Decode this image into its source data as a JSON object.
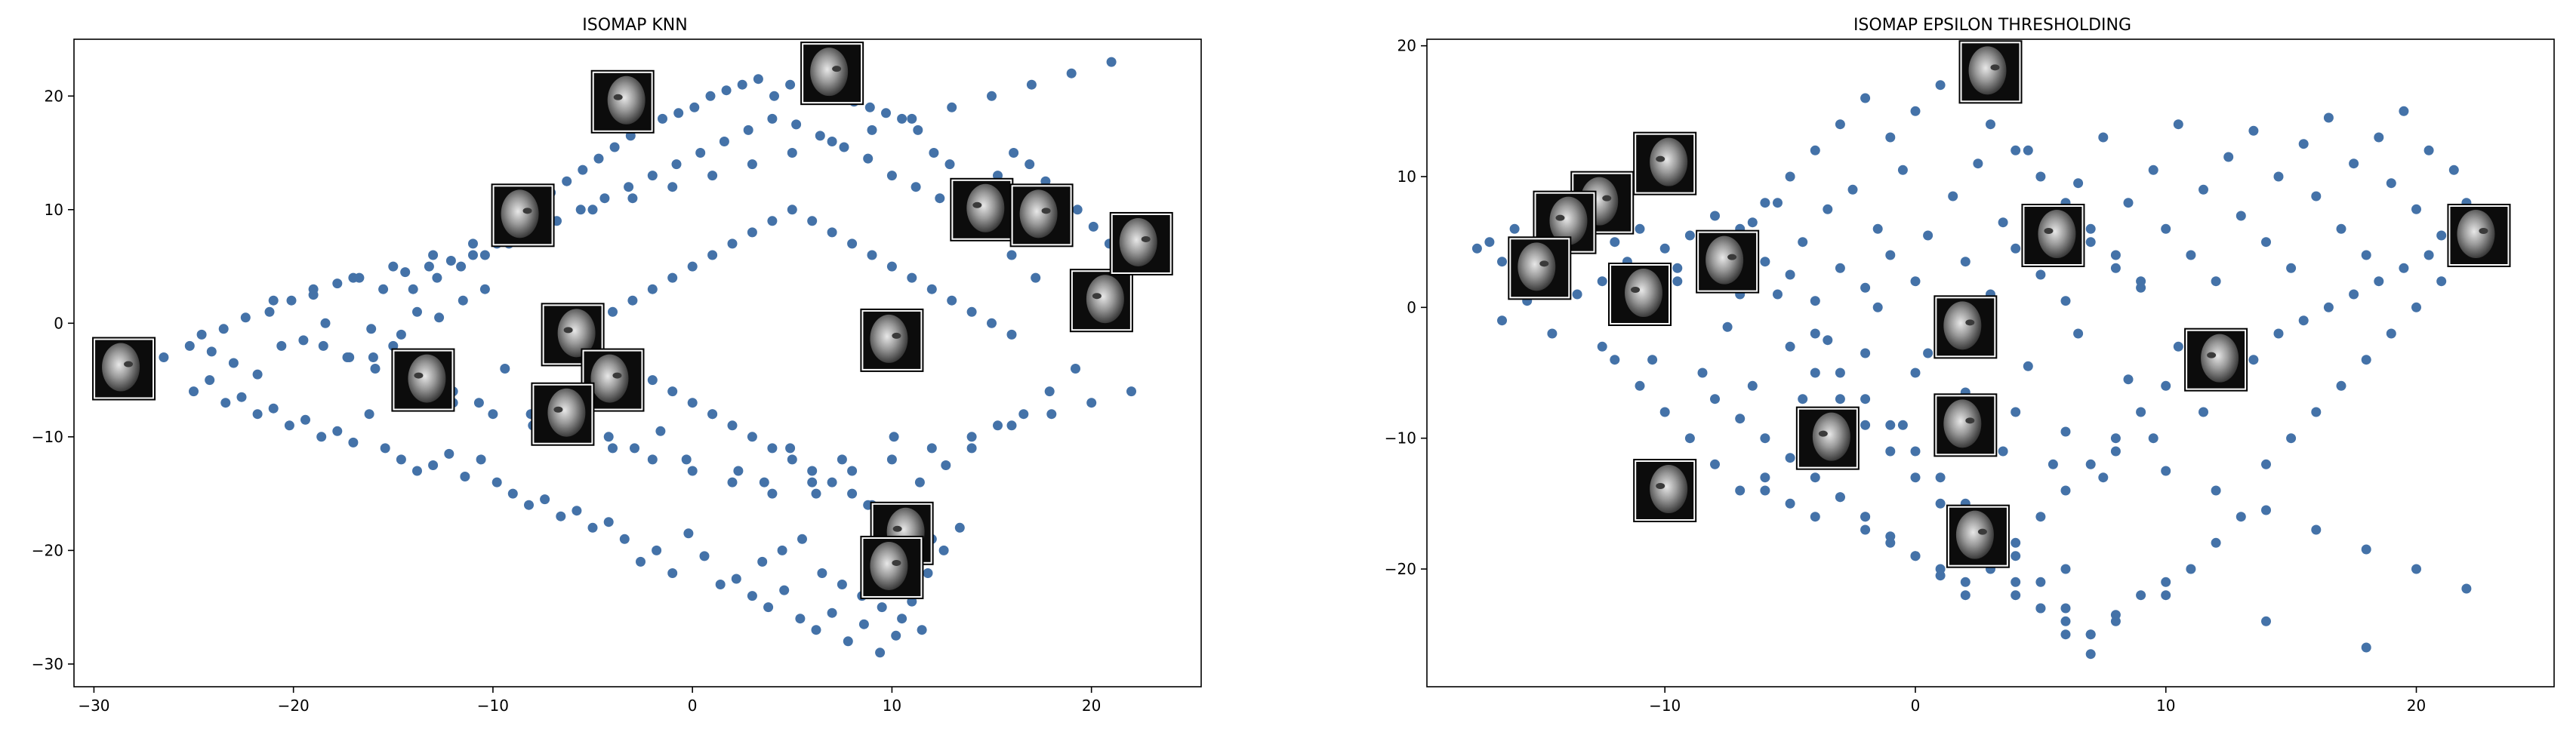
{
  "chart_data": [
    {
      "type": "scatter",
      "title": "ISOMAP KNN",
      "xlabel": "",
      "ylabel": "",
      "xlim": [
        -31,
        25.5
      ],
      "ylim": [
        -32,
        25
      ],
      "xticks": [
        -30,
        -20,
        -10,
        0,
        10,
        20
      ],
      "yticks": [
        -30,
        -20,
        -10,
        0,
        10,
        20
      ],
      "grid": false,
      "marker_color": "#4472a8",
      "points": {
        "x": [
          -27.8,
          -26.5,
          -25.2,
          -24.6,
          -24.1,
          -23.5,
          -23.0,
          -22.4,
          -21.8,
          -21.2,
          -20.6,
          -20.1,
          -19.5,
          -19.0,
          -18.4,
          -17.8,
          -17.3,
          -16.7,
          -16.1,
          -15.5,
          -15.0,
          -14.4,
          -13.8,
          -13.2,
          -12.7,
          -12.1,
          -11.5,
          -11.0,
          -10.4,
          -9.8,
          -25.0,
          -24.2,
          -23.4,
          -22.6,
          -21.8,
          -21.0,
          -20.2,
          -19.4,
          -18.6,
          -17.8,
          -17.0,
          -16.2,
          -15.4,
          -14.6,
          -13.8,
          -13.0,
          -12.2,
          -11.4,
          -10.6,
          -9.8,
          -9.0,
          -8.2,
          -7.4,
          -6.6,
          -5.8,
          -5.0,
          -4.2,
          -3.4,
          -2.6,
          -1.8,
          -1.0,
          -0.2,
          0.6,
          1.4,
          2.2,
          3.0,
          3.8,
          4.6,
          5.4,
          6.2,
          7.0,
          7.8,
          8.6,
          9.4,
          10.2,
          11.0,
          11.8,
          12.6,
          13.4,
          -9.5,
          -8.7,
          -7.9,
          -7.1,
          -6.3,
          -5.5,
          -4.7,
          -3.9,
          -3.1,
          -2.3,
          -1.5,
          -0.7,
          0.1,
          0.9,
          1.7,
          2.5,
          3.3,
          4.1,
          4.9,
          5.7,
          6.5,
          7.3,
          8.1,
          8.9,
          9.7,
          10.5,
          11.3,
          12.1,
          12.9,
          13.7,
          14.5,
          15.3,
          16.1,
          16.9,
          17.7,
          18.5,
          19.3,
          20.1,
          20.9,
          21.7,
          -18.5,
          -17.2,
          -15.9,
          -14.6,
          -13.3,
          -12.0,
          -10.7,
          -9.4,
          -8.1,
          -6.8,
          -5.5,
          -4.2,
          -2.9,
          -1.6,
          -0.3,
          1.0,
          2.3,
          3.6,
          4.9,
          6.2,
          7.5,
          8.8,
          10.1,
          11.4,
          12.7,
          14.0,
          15.3,
          16.6,
          17.9,
          19.2,
          -14.0,
          -12.8,
          -11.6,
          -10.4,
          -9.2,
          -8.0,
          -6.8,
          -5.6,
          -4.4,
          -3.2,
          -2.0,
          -0.8,
          0.4,
          1.6,
          2.8,
          4.0,
          5.2,
          6.4,
          7.6,
          8.8,
          10.0,
          11.2,
          12.4,
          13.6,
          14.8,
          16.0,
          17.2,
          -6.0,
          -5.0,
          -4.0,
          -3.0,
          -2.0,
          -1.0,
          0.0,
          1.0,
          2.0,
          3.0,
          4.0,
          5.0,
          6.0,
          7.0,
          8.0,
          9.0,
          10.0,
          11.0,
          12.0,
          13.0,
          14.0,
          15.0,
          16.0,
          -2.0,
          -1.0,
          0.0,
          1.0,
          2.0,
          3.0,
          4.0,
          5.0,
          6.0,
          7.0,
          8.0,
          9.0,
          10.0,
          11.0,
          12.0,
          3.5,
          4.5,
          5.5,
          6.5,
          7.5,
          8.5,
          9.5,
          10.5,
          11.5,
          -21.0,
          -19.0,
          -17.0,
          -15.0,
          -13.0,
          -11.0,
          -9.0,
          -7.0,
          -5.0,
          -3.0,
          -1.0,
          1.0,
          3.0,
          5.0,
          7.0,
          9.0,
          11.0,
          13.0,
          15.0,
          17.0,
          19.0,
          21.0,
          -16.0,
          -14.0,
          -12.0,
          -10.0,
          -8.0,
          -6.0,
          -4.0,
          -2.0,
          0.0,
          2.0,
          4.0,
          6.0,
          8.0,
          10.0,
          12.0,
          14.0,
          16.0,
          18.0,
          20.0,
          22.0
        ],
        "y": [
          -4.0,
          -3.0,
          -2.0,
          -1.0,
          -2.5,
          -0.5,
          -3.5,
          0.5,
          -4.5,
          1.0,
          -2.0,
          2.0,
          -1.5,
          2.5,
          0.0,
          3.5,
          -3.0,
          4.0,
          -0.5,
          3.0,
          -2.0,
          4.5,
          1.0,
          5.0,
          0.5,
          5.5,
          2.0,
          6.0,
          3.0,
          7.0,
          -6.0,
          -5.0,
          -7.0,
          -6.5,
          -8.0,
          -7.5,
          -9.0,
          -8.5,
          -10.0,
          -9.5,
          -10.5,
          -8.0,
          -11.0,
          -12.0,
          -13.0,
          -12.5,
          -11.5,
          -13.5,
          -12.0,
          -14.0,
          -15.0,
          -16.0,
          -15.5,
          -17.0,
          -16.5,
          -18.0,
          -17.5,
          -19.0,
          -21.0,
          -20.0,
          -22.0,
          -18.5,
          -20.5,
          -23.0,
          -22.5,
          -24.0,
          -25.0,
          -23.5,
          -26.0,
          -27.0,
          -25.5,
          -28.0,
          -26.5,
          -29.0,
          -27.5,
          -24.5,
          -22.0,
          -20.0,
          -18.0,
          8.0,
          9.0,
          10.5,
          11.5,
          12.5,
          13.5,
          14.5,
          15.5,
          16.5,
          17.5,
          18.0,
          18.5,
          19.0,
          20.0,
          20.5,
          21.0,
          21.5,
          20.0,
          21.0,
          22.0,
          21.5,
          20.5,
          19.5,
          19.0,
          18.5,
          18.0,
          17.0,
          15.0,
          14.0,
          12.0,
          11.0,
          13.0,
          15.0,
          14.0,
          12.5,
          11.0,
          10.0,
          8.5,
          7.0,
          5.0,
          -2.0,
          -3.0,
          -4.0,
          -1.0,
          -5.0,
          -6.0,
          -7.0,
          -4.0,
          -8.0,
          -9.0,
          -6.0,
          -10.0,
          -11.0,
          -9.5,
          -12.0,
          -8.0,
          -13.0,
          -14.0,
          -11.0,
          -15.0,
          -12.0,
          -16.0,
          -10.0,
          -14.0,
          -12.5,
          -11.0,
          -9.0,
          -8.0,
          -6.0,
          -4.0,
          3.0,
          4.0,
          5.0,
          6.0,
          7.0,
          8.0,
          9.0,
          10.0,
          11.0,
          12.0,
          13.0,
          14.0,
          15.0,
          16.0,
          17.0,
          18.0,
          17.5,
          16.5,
          15.5,
          14.5,
          13.0,
          12.0,
          11.0,
          10.0,
          8.0,
          6.0,
          4.0,
          -1.0,
          0.0,
          1.0,
          2.0,
          3.0,
          4.0,
          5.0,
          6.0,
          7.0,
          8.0,
          9.0,
          10.0,
          9.0,
          8.0,
          7.0,
          6.0,
          5.0,
          4.0,
          3.0,
          2.0,
          1.0,
          0.0,
          -1.0,
          -5.0,
          -6.0,
          -7.0,
          -8.0,
          -9.0,
          -10.0,
          -11.0,
          -12.0,
          -13.0,
          -14.0,
          -15.0,
          -16.0,
          -17.0,
          -18.0,
          -19.0,
          -21.0,
          -20.0,
          -19.0,
          -22.0,
          -23.0,
          -24.0,
          -25.0,
          -26.0,
          -27.0,
          2.0,
          3.0,
          4.0,
          5.0,
          6.0,
          7.0,
          8.0,
          9.0,
          10.0,
          11.0,
          12.0,
          13.0,
          14.0,
          15.0,
          16.0,
          17.0,
          18.0,
          19.0,
          20.0,
          21.0,
          22.0,
          23.0,
          -3.0,
          -5.0,
          -7.0,
          -8.0,
          -9.0,
          -10.0,
          -11.0,
          -12.0,
          -13.0,
          -14.0,
          -15.0,
          -14.0,
          -13.0,
          -12.0,
          -11.0,
          -10.0,
          -9.0,
          -8.0,
          -7.0,
          -6.0
        ]
      },
      "face_thumbnails": {
        "x": [
          -28.5,
          -13.5,
          -8.5,
          -3.5,
          7.0,
          -6.0,
          -4.0,
          -6.5,
          10.0,
          14.5,
          17.5,
          20.5,
          22.5,
          10.5,
          10.0
        ],
        "y": [
          -4.0,
          -5.0,
          9.5,
          19.5,
          22.0,
          -1.0,
          -5.0,
          -8.0,
          -1.5,
          10.0,
          9.5,
          2.0,
          7.0,
          -18.5,
          -21.5
        ]
      }
    },
    {
      "type": "scatter",
      "title": "ISOMAP EPSILON THRESHOLDING",
      "xlabel": "",
      "ylabel": "",
      "xlim": [
        -19.5,
        25.5
      ],
      "ylim": [
        -29,
        20.5
      ],
      "xticks": [
        -10,
        0,
        10,
        20
      ],
      "yticks": [
        -20,
        -10,
        0,
        10,
        20
      ],
      "grid": false,
      "marker_color": "#4472a8",
      "points": {
        "x": [
          -17.5,
          -17.0,
          -16.5,
          -16.0,
          -15.5,
          -15.0,
          -14.5,
          -14.0,
          -13.5,
          -13.0,
          -12.5,
          -12.0,
          -11.5,
          -11.0,
          -10.5,
          -10.0,
          -9.5,
          -9.0,
          -8.5,
          -8.0,
          -7.5,
          -7.0,
          -6.5,
          -6.0,
          -5.5,
          -5.0,
          -4.5,
          -4.0,
          -3.5,
          -3.0,
          -2.5,
          -2.0,
          -1.5,
          -1.0,
          -0.5,
          0.0,
          0.5,
          1.0,
          1.5,
          2.0,
          2.5,
          3.0,
          3.5,
          4.0,
          4.5,
          5.0,
          5.5,
          6.0,
          6.5,
          7.0,
          7.5,
          8.0,
          8.5,
          9.0,
          9.5,
          10.0,
          10.5,
          11.0,
          11.5,
          12.0,
          12.5,
          13.0,
          13.5,
          14.0,
          14.5,
          15.0,
          15.5,
          16.0,
          16.5,
          17.0,
          17.5,
          18.0,
          18.5,
          19.0,
          19.5,
          20.0,
          20.5,
          21.0,
          21.5,
          22.0,
          -16.5,
          -15.5,
          -14.5,
          -13.5,
          -12.5,
          -11.5,
          -10.5,
          -9.5,
          -8.5,
          -7.5,
          -6.5,
          -5.5,
          -4.5,
          -3.5,
          -2.5,
          -1.5,
          -0.5,
          0.5,
          1.5,
          2.5,
          3.5,
          4.5,
          5.5,
          6.5,
          7.5,
          8.5,
          9.5,
          10.5,
          11.5,
          12.5,
          13.5,
          14.5,
          15.5,
          16.5,
          17.5,
          18.5,
          19.5,
          20.5,
          -12.0,
          -11.0,
          -10.0,
          -9.0,
          -8.0,
          -7.0,
          -6.0,
          -5.0,
          -4.0,
          -3.0,
          -2.0,
          -1.0,
          0.0,
          1.0,
          2.0,
          3.0,
          4.0,
          5.0,
          6.0,
          7.0,
          8.0,
          9.0,
          10.0,
          11.0,
          12.0,
          13.0,
          14.0,
          15.0,
          16.0,
          17.0,
          18.0,
          19.0,
          20.0,
          21.0,
          22.0,
          23.0,
          -8.0,
          -7.0,
          -6.0,
          -5.0,
          -4.0,
          -3.0,
          -2.0,
          -1.0,
          0.0,
          1.0,
          2.0,
          3.0,
          4.0,
          5.0,
          6.0,
          7.0,
          8.0,
          9.0,
          10.0,
          11.0,
          12.0,
          -7.0,
          -6.0,
          -5.0,
          -4.0,
          -3.0,
          -2.0,
          -1.0,
          0.0,
          1.0,
          2.0,
          3.0,
          4.0,
          5.0,
          6.0,
          7.0,
          8.0,
          9.0,
          -5.0,
          -4.0,
          -3.0,
          -2.0,
          -1.0,
          0.0,
          1.0,
          2.0,
          3.0,
          4.0,
          5.0,
          6.0,
          7.0,
          8.0,
          -3.0,
          -2.0,
          -1.0,
          0.0,
          1.0,
          2.0,
          3.0,
          4.0,
          5.0,
          6.0,
          7.0,
          -4.0,
          -2.0,
          0.0,
          2.0,
          4.0,
          6.0,
          8.0,
          10.0,
          12.0,
          14.0,
          16.0,
          18.0,
          20.0,
          22.0,
          -10.0,
          -6.0,
          -2.0,
          2.0,
          6.0,
          10.0,
          14.0,
          18.0
        ],
        "y": [
          4.5,
          5.0,
          3.5,
          6.0,
          2.5,
          4.0,
          5.5,
          3.0,
          6.5,
          4.5,
          2.0,
          5.0,
          3.5,
          6.0,
          1.5,
          4.5,
          3.0,
          5.5,
          2.0,
          7.0,
          4.0,
          1.0,
          6.5,
          3.5,
          8.0,
          2.5,
          5.0,
          0.5,
          7.5,
          3.0,
          9.0,
          1.5,
          6.0,
          4.0,
          10.5,
          2.0,
          5.5,
          0.0,
          8.5,
          3.5,
          11.0,
          1.0,
          6.5,
          4.5,
          12.0,
          2.5,
          7.0,
          0.5,
          9.5,
          5.0,
          13.0,
          3.0,
          8.0,
          1.5,
          10.5,
          6.0,
          14.0,
          4.0,
          9.0,
          2.0,
          11.5,
          7.0,
          13.5,
          5.0,
          10.0,
          3.0,
          12.5,
          8.5,
          14.5,
          6.0,
          11.0,
          4.0,
          13.0,
          9.5,
          15.0,
          7.5,
          12.0,
          5.5,
          10.5,
          8.0,
          -1.0,
          0.5,
          -2.0,
          1.0,
          -3.0,
          -0.5,
          -4.0,
          2.0,
          -5.0,
          -1.5,
          -6.0,
          1.0,
          -7.0,
          -2.5,
          -8.0,
          0.0,
          -9.0,
          -3.5,
          -10.0,
          -1.0,
          -11.0,
          -4.5,
          -12.0,
          -2.0,
          -13.0,
          -5.5,
          -10.0,
          -3.0,
          -8.0,
          -6.0,
          -4.0,
          -2.0,
          -1.0,
          0.0,
          1.0,
          2.0,
          3.0,
          4.0,
          -4.0,
          -6.0,
          -8.0,
          -10.0,
          -12.0,
          -14.0,
          -13.0,
          -15.0,
          -16.0,
          -14.5,
          -17.0,
          -18.0,
          -19.0,
          -20.0,
          -21.0,
          -19.5,
          -22.0,
          -23.0,
          -24.0,
          -25.0,
          -23.5,
          -22.0,
          -21.0,
          -20.0,
          -18.0,
          -16.0,
          -12.0,
          -10.0,
          -8.0,
          -6.0,
          -4.0,
          -2.0,
          0.0,
          2.0,
          4.0,
          6.0,
          -7.0,
          -8.5,
          -10.0,
          -11.5,
          -13.0,
          -14.5,
          -16.0,
          -17.5,
          -19.0,
          -20.5,
          -22.0,
          -20.0,
          -18.0,
          -16.0,
          -14.0,
          -12.0,
          -10.0,
          -8.0,
          -6.0,
          -4.0,
          -2.0,
          6.0,
          8.0,
          10.0,
          12.0,
          14.0,
          16.0,
          13.0,
          15.0,
          17.0,
          16.0,
          14.0,
          12.0,
          10.0,
          8.0,
          6.0,
          4.0,
          2.0,
          -3.0,
          -5.0,
          -7.0,
          -9.0,
          -11.0,
          -13.0,
          -15.0,
          -17.0,
          -19.0,
          -21.0,
          -23.0,
          -25.0,
          -26.5,
          -24.0,
          -5.0,
          -7.0,
          -9.0,
          -11.0,
          -13.0,
          -15.0,
          -17.0,
          -19.0,
          -21.0,
          -23.0,
          -25.0,
          -2.0,
          -3.5,
          -5.0,
          -6.5,
          -8.0,
          -9.5,
          -11.0,
          -12.5,
          -14.0,
          -15.5,
          -17.0,
          -18.5,
          -20.0,
          -21.5,
          -12.0,
          -14.0,
          -16.0,
          -18.0,
          -20.0,
          -22.0,
          -24.0,
          -26.0
        ]
      },
      "face_thumbnails": {
        "x": [
          3.0,
          -10.0,
          -12.5,
          -14.0,
          -15.0,
          -11.0,
          -7.5,
          -3.5,
          2.0,
          5.5,
          2.0,
          -10.0,
          2.5,
          12.0,
          22.5
        ],
        "y": [
          18.0,
          11.0,
          8.0,
          6.5,
          3.0,
          1.0,
          3.5,
          -10.0,
          -1.5,
          5.5,
          -9.0,
          -14.0,
          -17.5,
          -4.0,
          5.5
        ]
      }
    }
  ]
}
